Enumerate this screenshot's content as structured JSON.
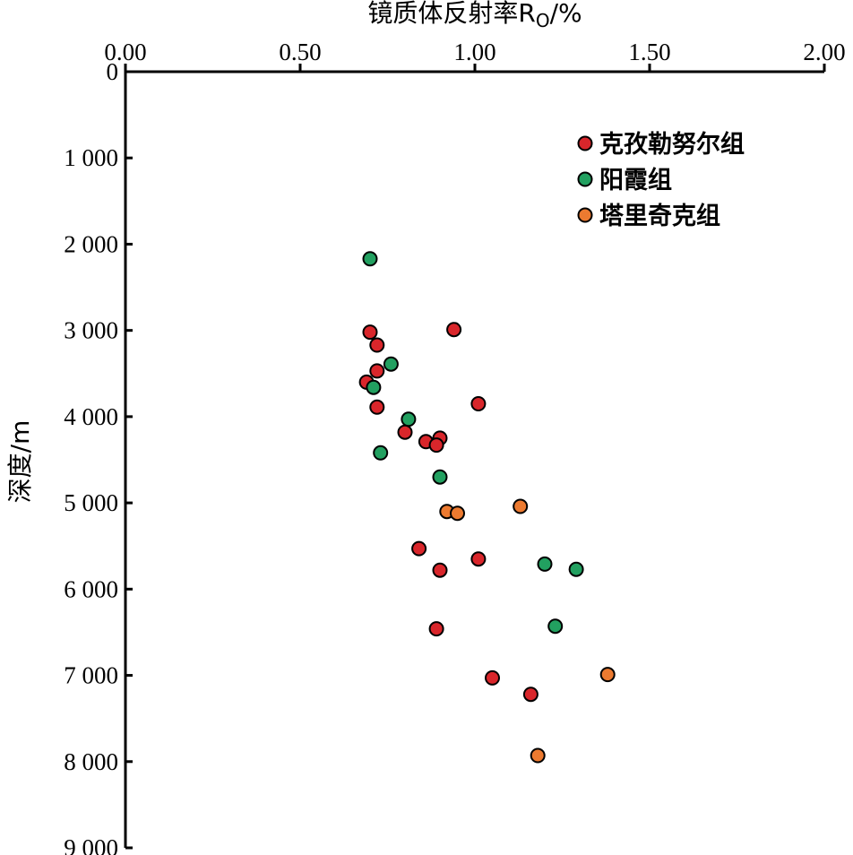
{
  "chart_data": {
    "type": "scatter",
    "title": "",
    "xlabel": "镜质体反射率R",
    "xlabel_sub": "O",
    "xlabel_unit": "/%",
    "ylabel": "深度/m",
    "x_axis_position": "top",
    "y_inverted": true,
    "xlim": [
      0,
      2
    ],
    "ylim": [
      0,
      9000
    ],
    "x_ticks": [
      0,
      0.5,
      1,
      1.5,
      2
    ],
    "x_tick_labels": [
      "0.00",
      "0.50",
      "1.00",
      "1.50",
      "2.00"
    ],
    "y_ticks": [
      0,
      1000,
      2000,
      3000,
      4000,
      5000,
      6000,
      7000,
      8000,
      9000
    ],
    "y_tick_labels": [
      "0",
      "1 000",
      "2 000",
      "3 000",
      "4 000",
      "5 000",
      "6 000",
      "7 000",
      "8 000",
      "9 000"
    ],
    "grid": false,
    "legend_position": "top-right",
    "series": [
      {
        "name": "克孜勒努尔组",
        "color": "#d9262b",
        "points": [
          {
            "x": 0.94,
            "y": 2990
          },
          {
            "x": 0.7,
            "y": 3020
          },
          {
            "x": 0.72,
            "y": 3170
          },
          {
            "x": 0.72,
            "y": 3470
          },
          {
            "x": 0.69,
            "y": 3600
          },
          {
            "x": 1.01,
            "y": 3850
          },
          {
            "x": 0.72,
            "y": 3890
          },
          {
            "x": 0.8,
            "y": 4180
          },
          {
            "x": 0.9,
            "y": 4250
          },
          {
            "x": 0.86,
            "y": 4290
          },
          {
            "x": 0.89,
            "y": 4330
          },
          {
            "x": 0.84,
            "y": 5530
          },
          {
            "x": 1.01,
            "y": 5650
          },
          {
            "x": 0.9,
            "y": 5780
          },
          {
            "x": 0.89,
            "y": 6460
          },
          {
            "x": 1.05,
            "y": 7030
          },
          {
            "x": 1.16,
            "y": 7220
          }
        ]
      },
      {
        "name": "阳霞组",
        "color": "#22a060",
        "points": [
          {
            "x": 0.7,
            "y": 2170
          },
          {
            "x": 0.76,
            "y": 3390
          },
          {
            "x": 0.71,
            "y": 3660
          },
          {
            "x": 0.81,
            "y": 4030
          },
          {
            "x": 0.73,
            "y": 4420
          },
          {
            "x": 0.9,
            "y": 4700
          },
          {
            "x": 1.2,
            "y": 5710
          },
          {
            "x": 1.29,
            "y": 5770
          },
          {
            "x": 1.23,
            "y": 6430
          }
        ]
      },
      {
        "name": "塔里奇克组",
        "color": "#ec7a30",
        "points": [
          {
            "x": 1.13,
            "y": 5040
          },
          {
            "x": 0.92,
            "y": 5100
          },
          {
            "x": 0.95,
            "y": 5120
          },
          {
            "x": 1.38,
            "y": 6990
          },
          {
            "x": 1.18,
            "y": 7930
          }
        ]
      }
    ]
  }
}
